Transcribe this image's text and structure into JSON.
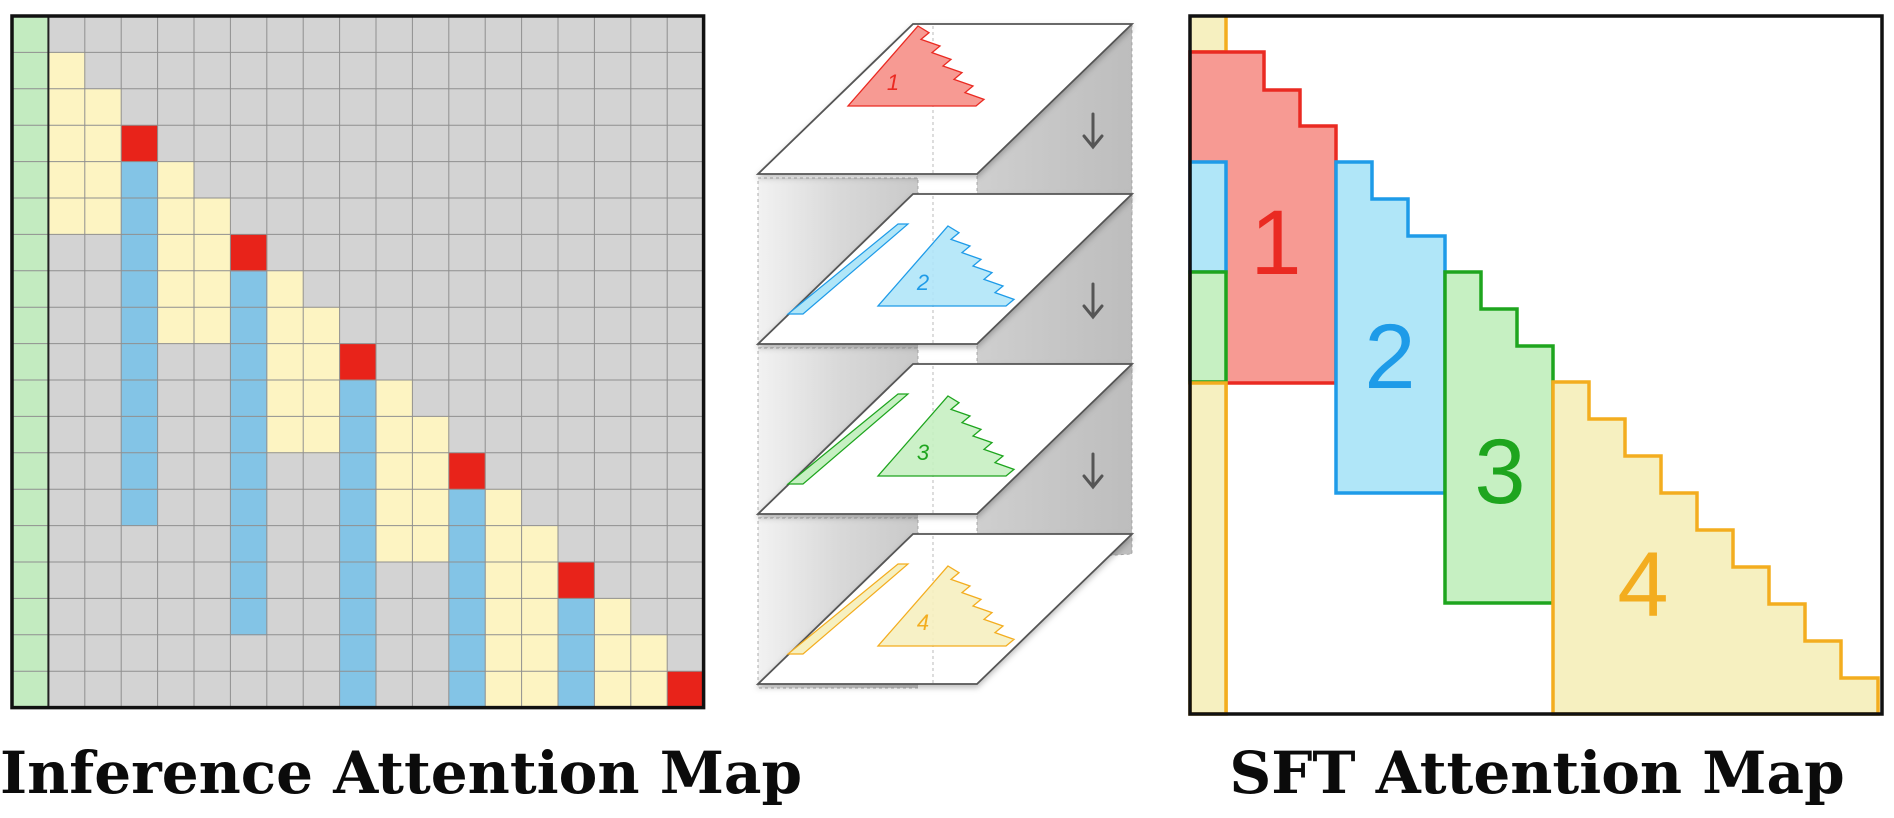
{
  "captions": {
    "left": "Inference Attention Map",
    "right": "SFT Attention Map"
  },
  "colors": {
    "grid_bg": "#d3d3d3",
    "grid_line": "#8f8f8f",
    "prefix": "#c3ebc0",
    "local": "#fdf4c2",
    "query": "#e8231a",
    "reuse": "#83c4e6",
    "block1_fill": "#f79a93",
    "block1_line": "#ea2a22",
    "block2_fill": "#b0e6f8",
    "block2_line": "#1e9be8",
    "block3_fill": "#c6f0c2",
    "block3_line": "#1ea51e",
    "block4_fill": "#f6f0c0",
    "block4_line": "#f3ad1f"
  },
  "blocks": [
    {
      "label": "1"
    },
    {
      "label": "2"
    },
    {
      "label": "3"
    },
    {
      "label": "4"
    }
  ],
  "arrows": [
    {
      "icon": "down-arrow-icon"
    },
    {
      "icon": "down-arrow-icon"
    },
    {
      "icon": "down-arrow-icon"
    }
  ]
}
